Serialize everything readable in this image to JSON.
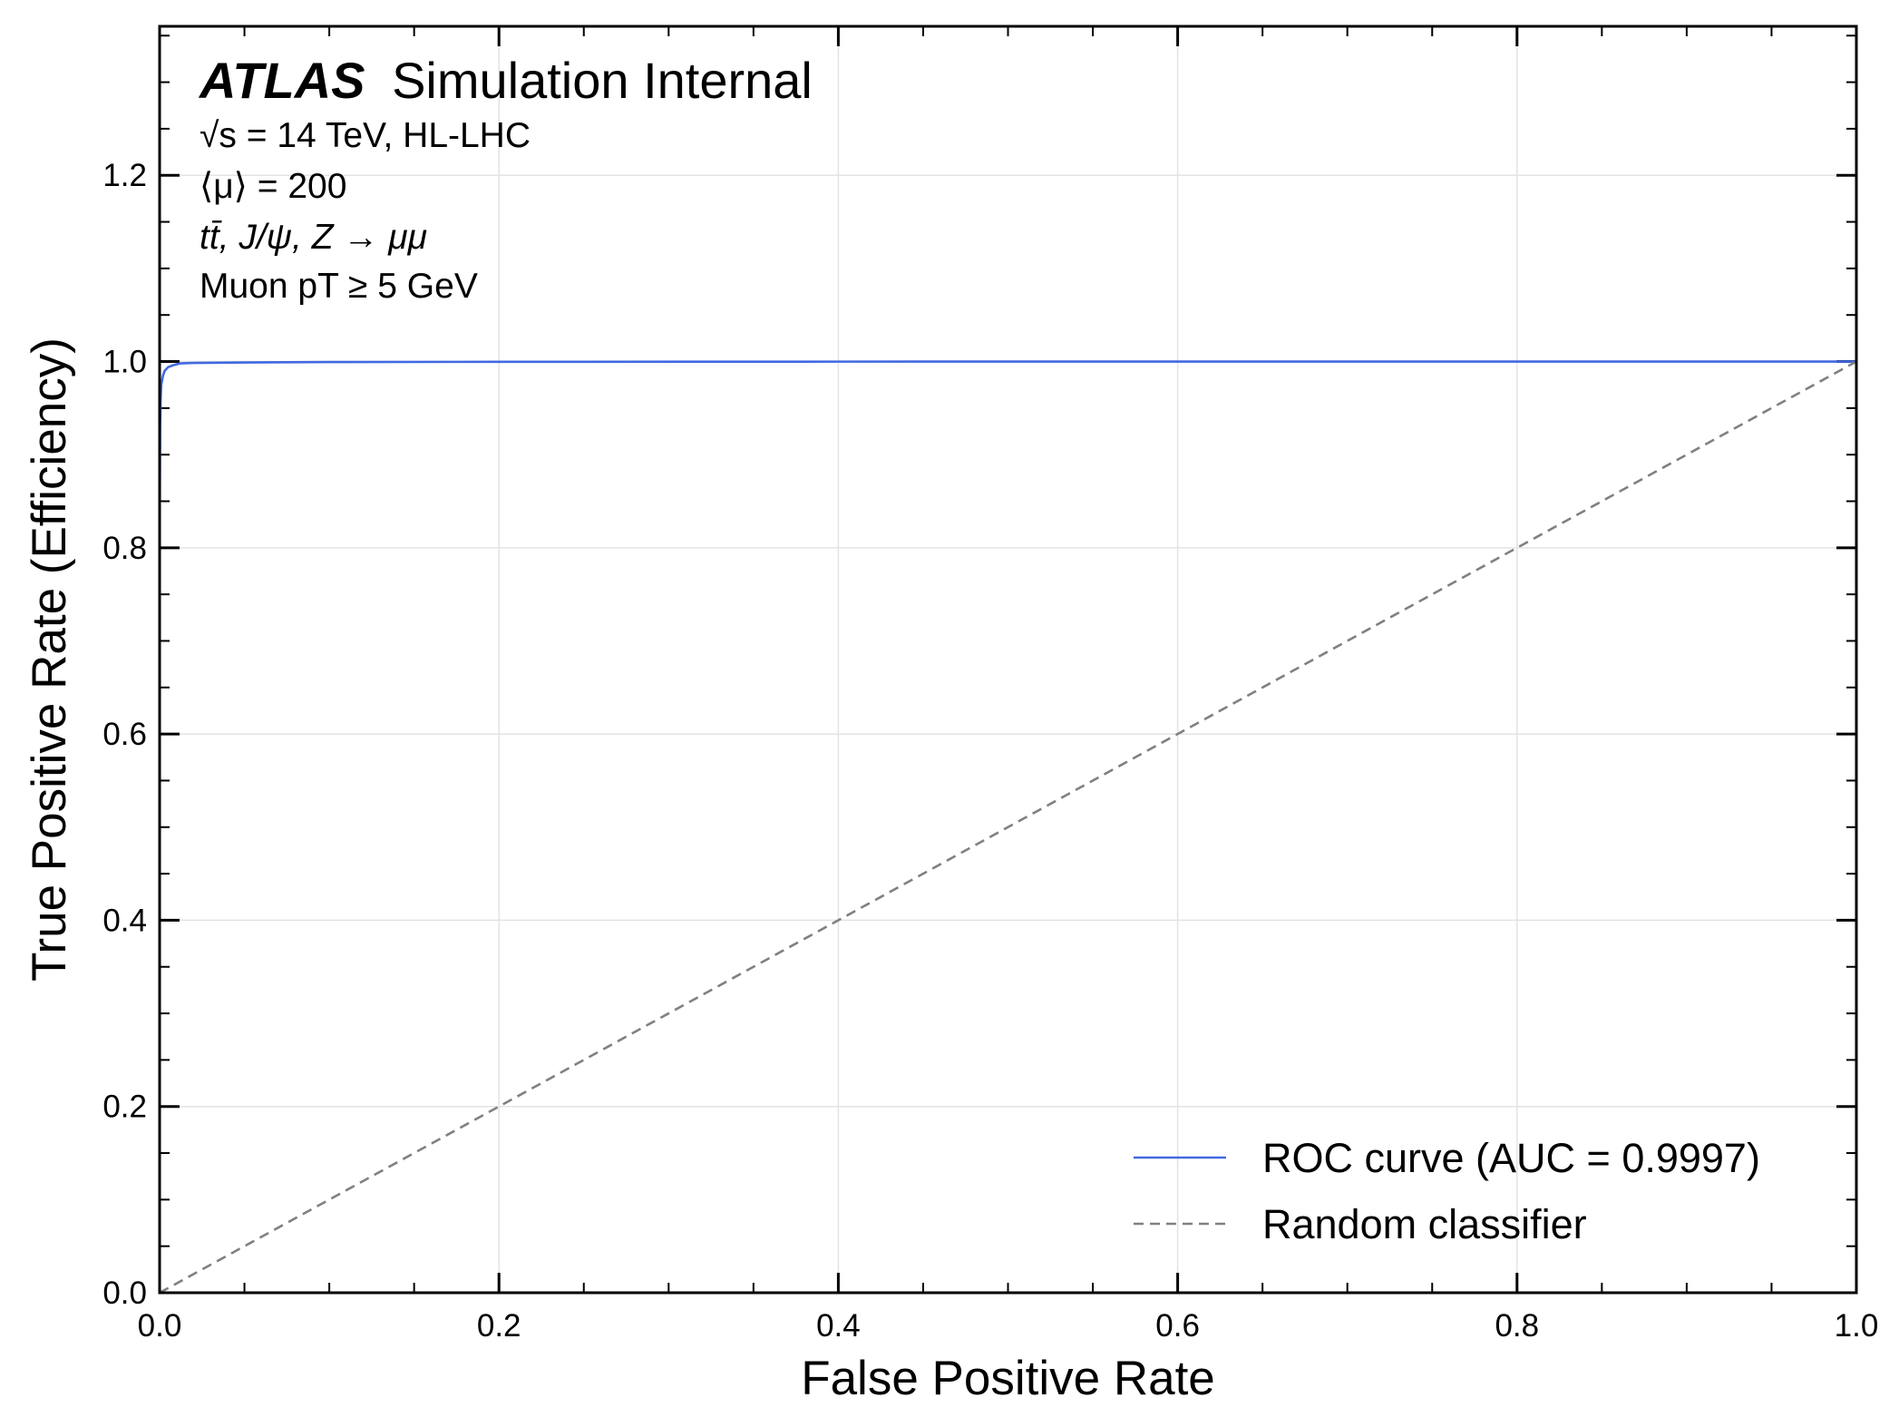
{
  "chart_data": {
    "type": "line",
    "xlabel": "False Positive Rate",
    "ylabel": "True Positive Rate (Efficiency)",
    "xlim": [
      0.0,
      1.0
    ],
    "ylim": [
      0.0,
      1.36
    ],
    "grid": true,
    "xticks": [
      "0.0",
      "0.2",
      "0.4",
      "0.6",
      "0.8",
      "1.0"
    ],
    "yticks": [
      "0.0",
      "0.2",
      "0.4",
      "0.6",
      "0.8",
      "1.0",
      "1.2"
    ],
    "legend_position": "bottom-right",
    "annotation": {
      "experiment": "ATLAS",
      "label": "Simulation Internal",
      "energy": "√s = 14 TeV, HL-LHC",
      "pileup": "⟨μ⟩ = 200",
      "samples": "tt̄, J/ψ, Z → μμ",
      "cut": "Muon pT ≥ 5 GeV"
    },
    "series": [
      {
        "name": "ROC curve (AUC = 0.9997)",
        "color": "#4169e1",
        "style": "solid",
        "x": [
          0.0,
          0.0,
          0.0003,
          0.0006,
          0.001,
          0.002,
          0.003,
          0.005,
          0.008,
          0.012,
          0.02,
          0.05,
          0.1,
          0.2,
          0.4,
          0.6,
          0.8,
          1.0
        ],
        "y": [
          0.0,
          0.8,
          0.93,
          0.96,
          0.975,
          0.985,
          0.99,
          0.994,
          0.996,
          0.998,
          0.9985,
          0.999,
          0.9995,
          0.9997,
          0.9999,
          1.0,
          1.0,
          1.0
        ]
      },
      {
        "name": "Random classifier",
        "color": "#808080",
        "style": "dashed",
        "x": [
          0.0,
          1.0
        ],
        "y": [
          0.0,
          1.0
        ]
      }
    ]
  }
}
